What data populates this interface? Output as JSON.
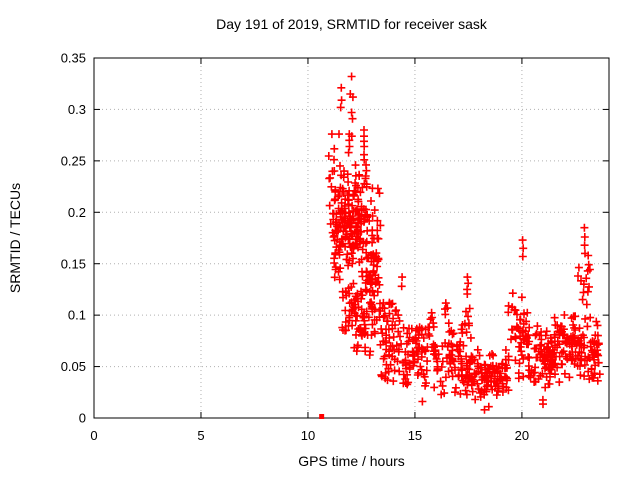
{
  "chart_data": {
    "type": "scatter",
    "title": "Day 191 of 2019, SRMTID for receiver sask",
    "xlabel": "GPS time / hours",
    "ylabel": "SRMTID / TECUs",
    "xlim": [
      0,
      24.07
    ],
    "ylim": [
      0,
      0.35
    ],
    "xticks": [
      0,
      5,
      10,
      15,
      20
    ],
    "xtick_labels": [
      "0",
      "5",
      "10",
      "15",
      "20"
    ],
    "yticks": [
      0,
      0.05,
      0.1,
      0.15,
      0.2,
      0.25,
      0.3,
      0.35
    ],
    "ytick_labels": [
      "0",
      "0.05",
      "0.1",
      "0.15",
      "0.2",
      "0.25",
      "0.3",
      "0.35"
    ],
    "grid": "dotted-major",
    "legend": "none",
    "marker": "plus",
    "marker_size_px": 9,
    "colors": {
      "marker": "#ff0000",
      "grid": "#b0b0b0",
      "frame": "#000000",
      "text": "#000000",
      "background": "#ffffff"
    },
    "zero_point": {
      "x": 10.64,
      "y": 0
    },
    "clusters_format": [
      "x_min_hours",
      "x_max_hours",
      "y_min_tecus",
      "y_max_tecus",
      "count",
      "spread u=uniform c=center-weighted"
    ],
    "clusters": [
      [
        10.95,
        11.3,
        0.15,
        0.27,
        16,
        "u"
      ],
      [
        11.2,
        12.15,
        0.13,
        0.252,
        110,
        "c"
      ],
      [
        12.1,
        12.75,
        0.12,
        0.25,
        75,
        "c"
      ],
      [
        11.55,
        12.2,
        0.085,
        0.132,
        26,
        "u"
      ],
      [
        12.15,
        12.8,
        0.062,
        0.125,
        42,
        "u"
      ],
      [
        12.75,
        13.4,
        0.05,
        0.235,
        80,
        "c"
      ],
      [
        13.35,
        14.3,
        0.035,
        0.118,
        58,
        "u"
      ],
      [
        14.25,
        15.6,
        0.028,
        0.098,
        70,
        "c"
      ],
      [
        15.55,
        15.9,
        0.045,
        0.118,
        13,
        "u"
      ],
      [
        15.85,
        17.3,
        0.02,
        0.096,
        75,
        "c"
      ],
      [
        16.4,
        16.65,
        0.08,
        0.116,
        6,
        "u"
      ],
      [
        17.32,
        17.62,
        0.075,
        0.124,
        9,
        "u"
      ],
      [
        17.35,
        19.4,
        0.013,
        0.072,
        130,
        "c"
      ],
      [
        19.35,
        19.68,
        0.075,
        0.124,
        9,
        "u"
      ],
      [
        19.65,
        20.35,
        0.03,
        0.125,
        45,
        "c"
      ],
      [
        20.3,
        21.35,
        0.02,
        0.1,
        60,
        "c"
      ],
      [
        20.85,
        21.0,
        0.01,
        0.018,
        2,
        "u"
      ],
      [
        21.3,
        22.6,
        0.032,
        0.108,
        85,
        "c"
      ],
      [
        22.6,
        23.25,
        0.095,
        0.15,
        12,
        "u"
      ],
      [
        22.6,
        23.65,
        0.03,
        0.098,
        65,
        "c"
      ]
    ],
    "extra_points": [
      [
        12.04,
        0.332
      ],
      [
        11.56,
        0.321
      ],
      [
        11.98,
        0.315
      ],
      [
        12.1,
        0.312
      ],
      [
        11.57,
        0.309
      ],
      [
        11.53,
        0.302
      ],
      [
        12.04,
        0.297
      ],
      [
        12.08,
        0.291
      ],
      [
        11.12,
        0.276
      ],
      [
        11.45,
        0.276
      ],
      [
        11.93,
        0.276
      ],
      [
        12.05,
        0.274
      ],
      [
        12.62,
        0.28
      ],
      [
        12.62,
        0.274
      ],
      [
        12.62,
        0.269
      ],
      [
        12.63,
        0.264
      ],
      [
        12.62,
        0.256
      ],
      [
        12.63,
        0.251
      ],
      [
        11.93,
        0.27
      ],
      [
        11.94,
        0.264
      ],
      [
        11.9,
        0.258
      ],
      [
        14.4,
        0.137
      ],
      [
        14.38,
        0.128
      ],
      [
        17.45,
        0.137
      ],
      [
        17.49,
        0.131
      ],
      [
        17.44,
        0.125
      ],
      [
        20.03,
        0.173
      ],
      [
        20.06,
        0.165
      ],
      [
        20.04,
        0.157
      ],
      [
        22.92,
        0.185
      ],
      [
        22.94,
        0.176
      ],
      [
        22.93,
        0.168
      ],
      [
        22.95,
        0.16
      ],
      [
        23.1,
        0.158
      ],
      [
        23.12,
        0.149
      ],
      [
        23.08,
        0.143
      ],
      [
        18.25,
        0.008
      ],
      [
        18.45,
        0.011
      ],
      [
        15.35,
        0.016
      ]
    ]
  }
}
